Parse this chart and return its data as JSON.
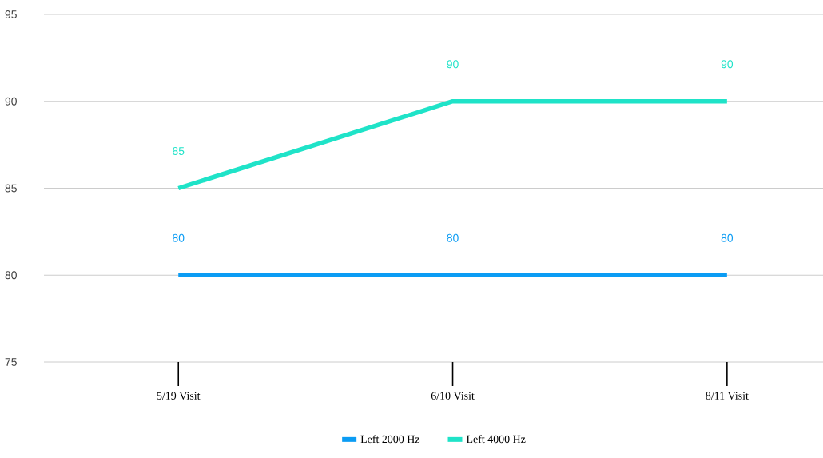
{
  "chart_data": {
    "type": "line",
    "categories": [
      "5/19 Visit",
      "6/10 Visit",
      "8/11 Visit"
    ],
    "series": [
      {
        "name": "Left 2000 Hz",
        "color": "#0b9cf4",
        "values": [
          80,
          80,
          80
        ]
      },
      {
        "name": "Left 4000 Hz",
        "color": "#1fe3c8",
        "values": [
          85,
          90,
          90
        ]
      }
    ],
    "ylim": [
      75,
      95
    ],
    "yticks": [
      75,
      80,
      85,
      90,
      95
    ],
    "grid": "y",
    "legend": "bottom",
    "data_labels": true,
    "marker": "none",
    "line_style": "solid"
  }
}
